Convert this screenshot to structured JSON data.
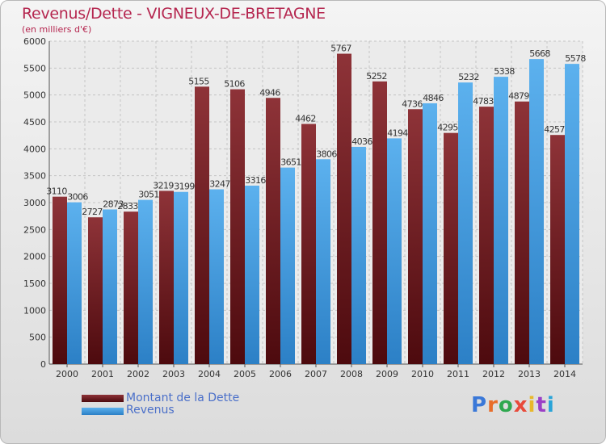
{
  "title": "Revenus/Dette - VIGNEUX-DE-BRETAGNE",
  "subtitle": "(en milliers d'€)",
  "logo_text": "Proxiti",
  "colors": {
    "dette": "#7a1f24",
    "revenus": "#4aa3e6",
    "title": "#b5264f",
    "legend_text": "#4a6fc9"
  },
  "chart_data": {
    "type": "bar",
    "title": "Revenus/Dette - VIGNEUX-DE-BRETAGNE",
    "subtitle": "(en milliers d'€)",
    "categories": [
      "2000",
      "2001",
      "2002",
      "2003",
      "2004",
      "2005",
      "2006",
      "2007",
      "2008",
      "2009",
      "2010",
      "2011",
      "2012",
      "2013",
      "2014"
    ],
    "series": [
      {
        "name": "Montant de la Dette",
        "values": [
          3110,
          2727,
          2833,
          3219,
          5155,
          5106,
          4946,
          4462,
          5767,
          5252,
          4736,
          4295,
          4783,
          4879,
          4257
        ],
        "labels": [
          "3110",
          "2727",
          "2833",
          "3219",
          "5155",
          "5106",
          "4946",
          "4462",
          "5767",
          "5252",
          "4736",
          "4295",
          "4783",
          "4879",
          "4257"
        ]
      },
      {
        "name": "Revenus",
        "values": [
          3006,
          2873,
          3051,
          3199,
          3247,
          3316,
          3651,
          3806,
          4036,
          4194,
          4846,
          5232,
          5338,
          5668,
          5578
        ],
        "labels": [
          "3006",
          "2873",
          "3051",
          "3199",
          "3247",
          "3316",
          "3651",
          "3806",
          "4036",
          "4194",
          "4846",
          "5232",
          "5338",
          "5668",
          "5578"
        ]
      }
    ],
    "ylim": [
      0,
      6000
    ],
    "yticks": [
      0,
      500,
      1000,
      1500,
      2000,
      2500,
      3000,
      3500,
      4000,
      4500,
      5000,
      5500,
      6000
    ],
    "grid": true,
    "legend_position": "bottom-left"
  }
}
